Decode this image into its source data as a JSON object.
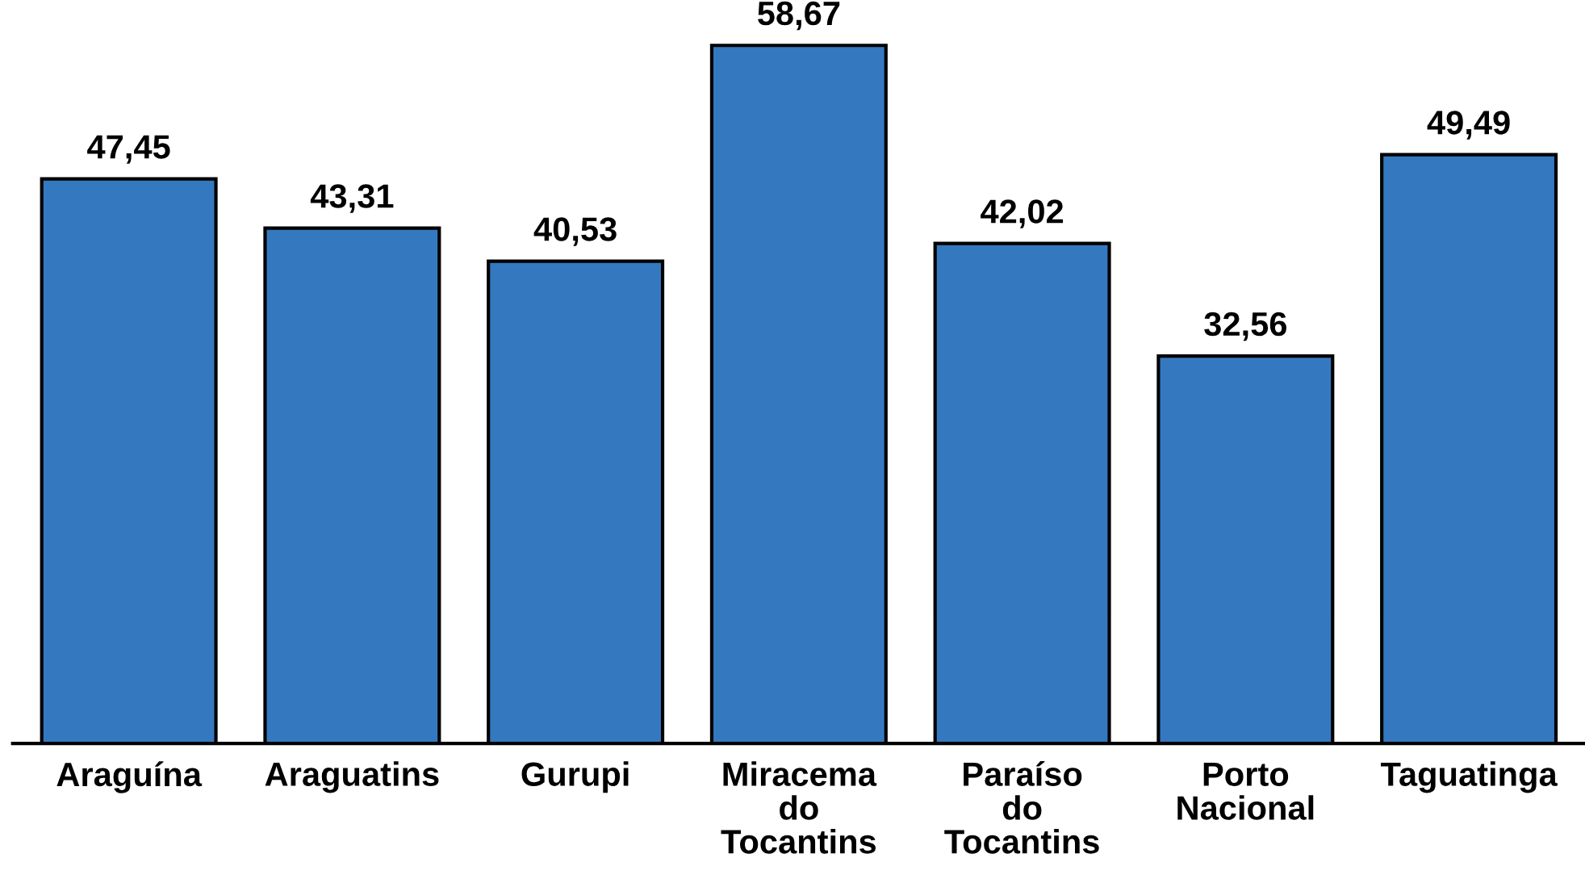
{
  "chart_data": {
    "type": "bar",
    "categories": [
      "Araguína",
      "Araguatins",
      "Gurupi",
      "Miracema do Tocantins",
      "Paraíso do Tocantins",
      "Porto Nacional",
      "Taguatinga"
    ],
    "values": [
      47.45,
      43.31,
      40.53,
      58.67,
      42.02,
      32.56,
      49.49
    ],
    "value_labels": [
      "47,45",
      "43,31",
      "40,53",
      "58,67",
      "42,02",
      "32,56",
      "49,49"
    ],
    "color": "#3479c0",
    "grid": false,
    "legend": false
  }
}
